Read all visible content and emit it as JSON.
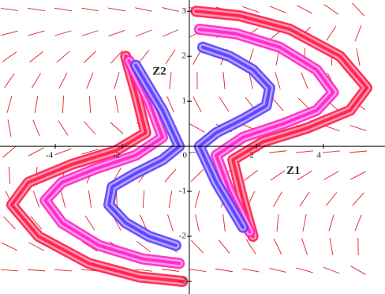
{
  "chart_data": {
    "type": "line",
    "annotations": [
      {
        "text": "Z1",
        "x": 2.9,
        "y": -0.55
      },
      {
        "text": "Z2",
        "x": -1.1,
        "y": 1.65
      }
    ],
    "xlim": [
      -5.65,
      5.84
    ],
    "ylim": [
      -3.28,
      3.25
    ],
    "xticks": [
      -4,
      -2,
      0,
      2,
      4
    ],
    "yticks": [
      -3,
      -2,
      -1,
      1,
      2,
      3
    ],
    "series": [
      {
        "color": "#ff1a4a",
        "x": [
          0.2,
          1.5,
          3,
          4.5,
          5.3,
          4.8,
          3.5,
          2.2,
          1.3,
          1.6,
          1.9
        ],
        "y": [
          3.0,
          2.9,
          2.6,
          2.0,
          1.3,
          0.8,
          0.4,
          0.1,
          -0.3,
          -1.2,
          -2.0
        ]
      },
      {
        "color": "#ff22c8",
        "x": [
          0.3,
          1.4,
          2.7,
          3.8,
          4.3,
          3.8,
          2.8,
          1.6,
          0.8,
          1.2,
          1.8
        ],
        "y": [
          2.6,
          2.5,
          2.2,
          1.7,
          1.2,
          0.8,
          0.5,
          0.2,
          -0.2,
          -1.0,
          -1.9
        ]
      },
      {
        "color": "#5a3cff",
        "x": [
          0.4,
          1.2,
          1.9,
          2.4,
          2.3,
          1.6,
          0.8,
          0.3,
          0.8,
          1.6
        ],
        "y": [
          2.2,
          2.0,
          1.7,
          1.3,
          0.9,
          0.6,
          0.3,
          0.0,
          -0.8,
          -1.8
        ]
      },
      {
        "color": "#ff1a4a",
        "x": [
          -0.2,
          -1.5,
          -3,
          -4.5,
          -5.3,
          -4.8,
          -3.5,
          -2.2,
          -1.3,
          -1.6,
          -1.9
        ],
        "y": [
          -3.0,
          -2.9,
          -2.6,
          -2.0,
          -1.3,
          -0.8,
          -0.4,
          -0.1,
          0.3,
          1.2,
          2.0
        ]
      },
      {
        "color": "#ff22c8",
        "x": [
          -0.3,
          -1.4,
          -2.7,
          -3.8,
          -4.3,
          -3.8,
          -2.8,
          -1.6,
          -0.8,
          -1.2,
          -1.8
        ],
        "y": [
          -2.6,
          -2.5,
          -2.2,
          -1.7,
          -1.2,
          -0.8,
          -0.5,
          -0.2,
          0.2,
          1.0,
          1.9
        ]
      },
      {
        "color": "#5a3cff",
        "x": [
          -0.4,
          -1.2,
          -1.9,
          -2.4,
          -2.3,
          -1.6,
          -0.8,
          -0.3,
          -0.8,
          -1.6
        ],
        "y": [
          -2.2,
          -2.0,
          -1.7,
          -1.3,
          -0.9,
          -0.6,
          -0.3,
          0.0,
          0.8,
          1.8
        ]
      }
    ]
  }
}
